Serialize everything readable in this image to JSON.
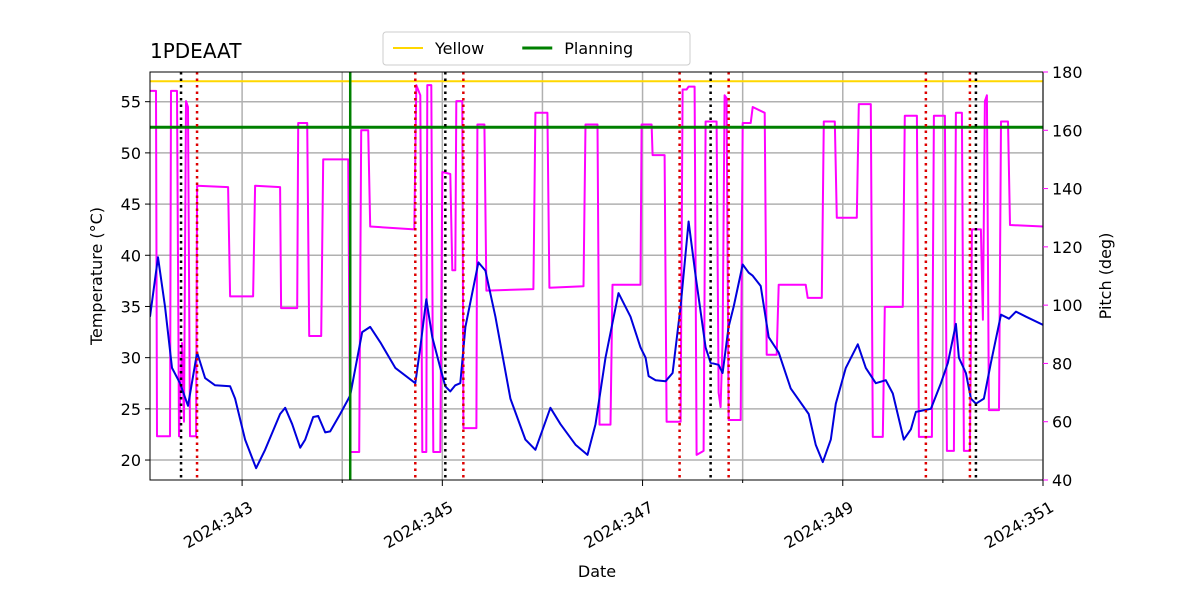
{
  "chart_data": {
    "type": "line",
    "title": "1PDEAAT",
    "xlabel": "Date",
    "ylabel": "Temperature (°C)",
    "y2label": "Pitch (deg)",
    "y2color": "#ff00ff",
    "xlim": [
      342.08,
      351.0
    ],
    "ylim": [
      18.05,
      57.9
    ],
    "y2lim": [
      40,
      180
    ],
    "xticks": [
      {
        "value": 343,
        "label": "2024:343"
      },
      {
        "value": 345,
        "label": "2024:345"
      },
      {
        "value": 347,
        "label": "2024:347"
      },
      {
        "value": 349,
        "label": "2024:349"
      },
      {
        "value": 351,
        "label": "2024:351"
      }
    ],
    "xminorticks": [
      344,
      346,
      348,
      350
    ],
    "yticks": [
      20,
      25,
      30,
      35,
      40,
      45,
      50,
      55
    ],
    "y2ticks": [
      40,
      60,
      80,
      100,
      120,
      140,
      160,
      180
    ],
    "grid": true,
    "legend": "upper center",
    "hlines": [
      {
        "name": "Yellow",
        "value": 57,
        "color": "#ffd700",
        "width": 2
      },
      {
        "name": "Planning",
        "value": 52.5,
        "color": "#008000",
        "width": 3
      }
    ],
    "vlines": [
      {
        "value": 344.08,
        "color": "#008000",
        "style": "solid"
      },
      {
        "value": 342.39,
        "color": "#000000",
        "style": "dotted"
      },
      {
        "value": 345.03,
        "color": "#000000",
        "style": "dotted"
      },
      {
        "value": 347.68,
        "color": "#000000",
        "style": "dotted"
      },
      {
        "value": 350.33,
        "color": "#000000",
        "style": "dotted"
      },
      {
        "value": 342.55,
        "color": "#dd0000",
        "style": "dotted"
      },
      {
        "value": 344.73,
        "color": "#dd0000",
        "style": "dotted"
      },
      {
        "value": 345.21,
        "color": "#dd0000",
        "style": "dotted"
      },
      {
        "value": 347.37,
        "color": "#dd0000",
        "style": "dotted"
      },
      {
        "value": 347.86,
        "color": "#dd0000",
        "style": "dotted"
      },
      {
        "value": 349.83,
        "color": "#dd0000",
        "style": "dotted"
      },
      {
        "value": 350.27,
        "color": "#dd0000",
        "style": "dotted"
      }
    ],
    "series": [
      {
        "color": "#ff00ff",
        "axis": "y2",
        "x": [
          342.08,
          342.14,
          342.15,
          342.28,
          342.29,
          342.35,
          342.37,
          342.4,
          342.42,
          342.44,
          342.46,
          342.48,
          342.54,
          342.55,
          342.86,
          342.88,
          343.11,
          343.13,
          343.38,
          343.39,
          343.55,
          343.56,
          343.65,
          343.67,
          343.79,
          343.81,
          344.06,
          344.08,
          344.17,
          344.19,
          344.26,
          344.28,
          344.72,
          344.74,
          344.78,
          344.8,
          344.84,
          344.85,
          344.89,
          344.91,
          344.98,
          345.0,
          345.08,
          345.1,
          345.13,
          345.14,
          345.2,
          345.21,
          345.34,
          345.35,
          345.42,
          345.44,
          345.91,
          345.93,
          346.05,
          346.07,
          346.41,
          346.43,
          346.55,
          346.57,
          346.68,
          346.7,
          346.98,
          346.99,
          347.09,
          347.1,
          347.22,
          347.24,
          347.38,
          347.4,
          347.44,
          347.46,
          347.52,
          347.54,
          347.61,
          347.63,
          347.74,
          347.76,
          347.78,
          347.8,
          347.82,
          347.84,
          347.86,
          347.98,
          348.0,
          348.08,
          348.1,
          348.22,
          348.24,
          348.34,
          348.36,
          348.63,
          348.65,
          348.79,
          348.81,
          348.92,
          348.94,
          349.14,
          349.16,
          349.28,
          349.3,
          349.4,
          349.42,
          349.6,
          349.62,
          349.74,
          349.76,
          349.89,
          349.91,
          350.02,
          350.04,
          350.11,
          350.13,
          350.19,
          350.21,
          350.27,
          350.29,
          350.38,
          350.4,
          350.42,
          350.44,
          350.46,
          350.56,
          350.58,
          350.65,
          350.67,
          351.0
        ],
        "values": [
          173.5,
          173.5,
          55,
          55,
          173.5,
          173.5,
          55,
          87,
          60,
          170,
          168,
          55,
          55,
          141,
          140.5,
          103,
          103,
          141,
          140.5,
          99,
          99,
          162.5,
          162.5,
          89.4,
          89.4,
          150,
          150,
          49.6,
          49.6,
          160,
          160,
          127,
          126,
          175.5,
          172,
          49.6,
          49.6,
          175.5,
          175.5,
          49.6,
          49.6,
          145.7,
          145,
          112,
          112,
          170,
          170,
          57.8,
          57.8,
          162,
          162,
          105,
          105.5,
          166,
          166,
          106,
          106.5,
          162,
          162,
          59,
          59,
          107,
          107,
          162,
          162,
          151.5,
          151.5,
          60,
          60,
          174,
          174,
          175,
          175,
          48.6,
          50,
          163,
          163,
          70,
          65,
          88,
          172,
          171,
          60.6,
          60.6,
          162.5,
          162.5,
          168,
          166,
          83,
          83,
          107,
          107,
          102.5,
          102.5,
          163,
          163,
          130,
          130,
          169,
          169,
          54.8,
          54.8,
          99.4,
          99.4,
          165,
          165,
          54.8,
          54.8,
          165,
          165,
          50,
          50,
          166,
          166,
          50,
          50,
          126,
          126,
          95,
          170,
          172,
          64,
          64,
          163,
          163,
          127.5,
          127
        ]
      },
      {
        "color": "#0000dd",
        "axis": "y",
        "x": [
          342.08,
          342.16,
          342.23,
          342.3,
          342.38,
          342.46,
          342.55,
          342.63,
          342.73,
          342.88,
          342.93,
          343.03,
          343.14,
          343.23,
          343.38,
          343.43,
          343.5,
          343.58,
          343.63,
          343.71,
          343.76,
          343.83,
          343.88,
          343.98,
          344.08,
          344.2,
          344.28,
          344.38,
          344.53,
          344.73,
          344.78,
          344.84,
          344.9,
          344.98,
          345.03,
          345.08,
          345.13,
          345.18,
          345.23,
          345.36,
          345.43,
          345.53,
          345.68,
          345.83,
          345.93,
          346.08,
          346.18,
          346.33,
          346.45,
          346.53,
          346.63,
          346.76,
          346.88,
          346.98,
          347.03,
          347.06,
          347.13,
          347.23,
          347.3,
          347.38,
          347.46,
          347.53,
          347.63,
          347.68,
          347.76,
          347.8,
          347.86,
          347.91,
          348.0,
          348.06,
          348.1,
          348.18,
          348.26,
          348.36,
          348.48,
          348.66,
          348.73,
          348.8,
          348.88,
          348.93,
          349.03,
          349.15,
          349.23,
          349.33,
          349.43,
          349.5,
          349.61,
          349.68,
          349.73,
          349.88,
          349.98,
          350.05,
          350.13,
          350.16,
          350.23,
          350.28,
          350.33,
          350.41,
          350.48,
          350.58,
          350.66,
          350.73,
          350.83,
          351.0
        ],
        "values": [
          34,
          39.8,
          35,
          29,
          27.5,
          25.3,
          30.5,
          28,
          27.3,
          27.2,
          26,
          22,
          19.2,
          21,
          24.5,
          25.1,
          23.5,
          21.2,
          22,
          24.2,
          24.3,
          22.7,
          22.8,
          24.5,
          26.3,
          32.5,
          33,
          31.5,
          29,
          27.5,
          31,
          35.7,
          32,
          29,
          27.2,
          26.7,
          27.3,
          27.5,
          33,
          39.3,
          38.5,
          34,
          26,
          22,
          21,
          25.1,
          23.5,
          21.5,
          20.5,
          23.5,
          30,
          36.3,
          34,
          31,
          30,
          28.2,
          27.8,
          27.7,
          28.5,
          35,
          43.3,
          38,
          31,
          29.5,
          29.3,
          28.5,
          33,
          35,
          39.1,
          38.3,
          38,
          37,
          32,
          30.5,
          27,
          24.5,
          21.5,
          19.8,
          22,
          25.5,
          29,
          31.3,
          29,
          27.5,
          27.8,
          26.5,
          22,
          23,
          24.7,
          25,
          27.5,
          29.5,
          33.3,
          30,
          28.5,
          26,
          25.5,
          26,
          29.5,
          34.2,
          33.8,
          34.5,
          34,
          33.2
        ]
      }
    ]
  }
}
